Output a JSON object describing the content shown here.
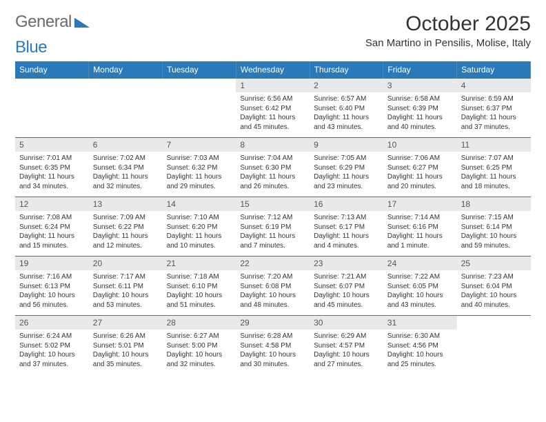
{
  "brand": {
    "general": "General",
    "blue": "Blue"
  },
  "header": {
    "month": "October 2025",
    "location": "San Martino in Pensilis, Molise, Italy"
  },
  "dayNames": [
    "Sunday",
    "Monday",
    "Tuesday",
    "Wednesday",
    "Thursday",
    "Friday",
    "Saturday"
  ],
  "colors": {
    "headerBg": "#2a7ab9",
    "headerText": "#ffffff",
    "dayNumBg": "#e9e9e9",
    "dayNumText": "#555555",
    "bodyText": "#333333",
    "rule": "#2a7ab9"
  },
  "weeks": [
    [
      {
        "n": "",
        "sr": "",
        "ss": "",
        "dl": ""
      },
      {
        "n": "",
        "sr": "",
        "ss": "",
        "dl": ""
      },
      {
        "n": "",
        "sr": "",
        "ss": "",
        "dl": ""
      },
      {
        "n": "1",
        "sr": "Sunrise: 6:56 AM",
        "ss": "Sunset: 6:42 PM",
        "dl": "Daylight: 11 hours and 45 minutes."
      },
      {
        "n": "2",
        "sr": "Sunrise: 6:57 AM",
        "ss": "Sunset: 6:40 PM",
        "dl": "Daylight: 11 hours and 43 minutes."
      },
      {
        "n": "3",
        "sr": "Sunrise: 6:58 AM",
        "ss": "Sunset: 6:39 PM",
        "dl": "Daylight: 11 hours and 40 minutes."
      },
      {
        "n": "4",
        "sr": "Sunrise: 6:59 AM",
        "ss": "Sunset: 6:37 PM",
        "dl": "Daylight: 11 hours and 37 minutes."
      }
    ],
    [
      {
        "n": "5",
        "sr": "Sunrise: 7:01 AM",
        "ss": "Sunset: 6:35 PM",
        "dl": "Daylight: 11 hours and 34 minutes."
      },
      {
        "n": "6",
        "sr": "Sunrise: 7:02 AM",
        "ss": "Sunset: 6:34 PM",
        "dl": "Daylight: 11 hours and 32 minutes."
      },
      {
        "n": "7",
        "sr": "Sunrise: 7:03 AM",
        "ss": "Sunset: 6:32 PM",
        "dl": "Daylight: 11 hours and 29 minutes."
      },
      {
        "n": "8",
        "sr": "Sunrise: 7:04 AM",
        "ss": "Sunset: 6:30 PM",
        "dl": "Daylight: 11 hours and 26 minutes."
      },
      {
        "n": "9",
        "sr": "Sunrise: 7:05 AM",
        "ss": "Sunset: 6:29 PM",
        "dl": "Daylight: 11 hours and 23 minutes."
      },
      {
        "n": "10",
        "sr": "Sunrise: 7:06 AM",
        "ss": "Sunset: 6:27 PM",
        "dl": "Daylight: 11 hours and 20 minutes."
      },
      {
        "n": "11",
        "sr": "Sunrise: 7:07 AM",
        "ss": "Sunset: 6:25 PM",
        "dl": "Daylight: 11 hours and 18 minutes."
      }
    ],
    [
      {
        "n": "12",
        "sr": "Sunrise: 7:08 AM",
        "ss": "Sunset: 6:24 PM",
        "dl": "Daylight: 11 hours and 15 minutes."
      },
      {
        "n": "13",
        "sr": "Sunrise: 7:09 AM",
        "ss": "Sunset: 6:22 PM",
        "dl": "Daylight: 11 hours and 12 minutes."
      },
      {
        "n": "14",
        "sr": "Sunrise: 7:10 AM",
        "ss": "Sunset: 6:20 PM",
        "dl": "Daylight: 11 hours and 10 minutes."
      },
      {
        "n": "15",
        "sr": "Sunrise: 7:12 AM",
        "ss": "Sunset: 6:19 PM",
        "dl": "Daylight: 11 hours and 7 minutes."
      },
      {
        "n": "16",
        "sr": "Sunrise: 7:13 AM",
        "ss": "Sunset: 6:17 PM",
        "dl": "Daylight: 11 hours and 4 minutes."
      },
      {
        "n": "17",
        "sr": "Sunrise: 7:14 AM",
        "ss": "Sunset: 6:16 PM",
        "dl": "Daylight: 11 hours and 1 minute."
      },
      {
        "n": "18",
        "sr": "Sunrise: 7:15 AM",
        "ss": "Sunset: 6:14 PM",
        "dl": "Daylight: 10 hours and 59 minutes."
      }
    ],
    [
      {
        "n": "19",
        "sr": "Sunrise: 7:16 AM",
        "ss": "Sunset: 6:13 PM",
        "dl": "Daylight: 10 hours and 56 minutes."
      },
      {
        "n": "20",
        "sr": "Sunrise: 7:17 AM",
        "ss": "Sunset: 6:11 PM",
        "dl": "Daylight: 10 hours and 53 minutes."
      },
      {
        "n": "21",
        "sr": "Sunrise: 7:18 AM",
        "ss": "Sunset: 6:10 PM",
        "dl": "Daylight: 10 hours and 51 minutes."
      },
      {
        "n": "22",
        "sr": "Sunrise: 7:20 AM",
        "ss": "Sunset: 6:08 PM",
        "dl": "Daylight: 10 hours and 48 minutes."
      },
      {
        "n": "23",
        "sr": "Sunrise: 7:21 AM",
        "ss": "Sunset: 6:07 PM",
        "dl": "Daylight: 10 hours and 45 minutes."
      },
      {
        "n": "24",
        "sr": "Sunrise: 7:22 AM",
        "ss": "Sunset: 6:05 PM",
        "dl": "Daylight: 10 hours and 43 minutes."
      },
      {
        "n": "25",
        "sr": "Sunrise: 7:23 AM",
        "ss": "Sunset: 6:04 PM",
        "dl": "Daylight: 10 hours and 40 minutes."
      }
    ],
    [
      {
        "n": "26",
        "sr": "Sunrise: 6:24 AM",
        "ss": "Sunset: 5:02 PM",
        "dl": "Daylight: 10 hours and 37 minutes."
      },
      {
        "n": "27",
        "sr": "Sunrise: 6:26 AM",
        "ss": "Sunset: 5:01 PM",
        "dl": "Daylight: 10 hours and 35 minutes."
      },
      {
        "n": "28",
        "sr": "Sunrise: 6:27 AM",
        "ss": "Sunset: 5:00 PM",
        "dl": "Daylight: 10 hours and 32 minutes."
      },
      {
        "n": "29",
        "sr": "Sunrise: 6:28 AM",
        "ss": "Sunset: 4:58 PM",
        "dl": "Daylight: 10 hours and 30 minutes."
      },
      {
        "n": "30",
        "sr": "Sunrise: 6:29 AM",
        "ss": "Sunset: 4:57 PM",
        "dl": "Daylight: 10 hours and 27 minutes."
      },
      {
        "n": "31",
        "sr": "Sunrise: 6:30 AM",
        "ss": "Sunset: 4:56 PM",
        "dl": "Daylight: 10 hours and 25 minutes."
      },
      {
        "n": "",
        "sr": "",
        "ss": "",
        "dl": ""
      }
    ]
  ]
}
